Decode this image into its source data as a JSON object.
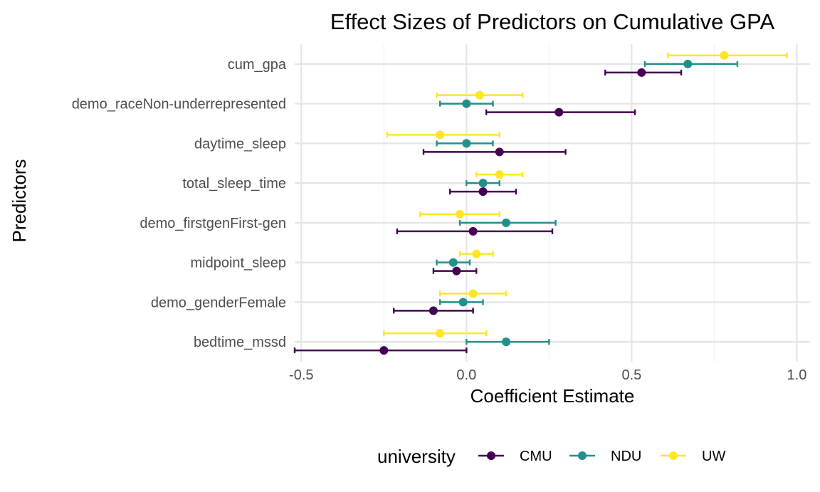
{
  "chart_data": {
    "type": "scatter",
    "title": "Effect Sizes of Predictors on Cumulative GPA",
    "xlabel": "Coefficient Estimate",
    "ylabel": "Predictors",
    "xlim": [
      -0.52,
      1.04
    ],
    "x_ticks": [
      -0.5,
      0.0,
      0.5,
      1.0
    ],
    "x_tick_labels": [
      "-0.5",
      "0.0",
      "0.5",
      "1.0"
    ],
    "grid": true,
    "legend_position": "bottom",
    "legend_title": "university",
    "categories": [
      "cum_gpa",
      "demo_raceNon-underrepresented",
      "daytime_sleep",
      "total_sleep_time",
      "demo_firstgenFirst-gen",
      "midpoint_sleep",
      "demo_genderFemale",
      "bedtime_mssd"
    ],
    "series": [
      {
        "name": "CMU",
        "color": "#440154",
        "estimates": [
          0.53,
          0.28,
          0.1,
          0.05,
          0.02,
          -0.03,
          -0.1,
          -0.25
        ],
        "ci_low": [
          0.42,
          0.06,
          -0.13,
          -0.05,
          -0.21,
          -0.1,
          -0.22,
          -0.52
        ],
        "ci_high": [
          0.65,
          0.51,
          0.3,
          0.15,
          0.26,
          0.03,
          0.02,
          0.0
        ]
      },
      {
        "name": "NDU",
        "color": "#21908C",
        "estimates": [
          0.67,
          0.0,
          0.0,
          0.05,
          0.12,
          -0.04,
          -0.01,
          0.12
        ],
        "ci_low": [
          0.54,
          -0.08,
          -0.09,
          0.0,
          -0.02,
          -0.09,
          -0.08,
          0.0
        ],
        "ci_high": [
          0.82,
          0.08,
          0.08,
          0.1,
          0.27,
          0.01,
          0.05,
          0.25
        ]
      },
      {
        "name": "UW",
        "color": "#FDE725",
        "estimates": [
          0.78,
          0.04,
          -0.08,
          0.1,
          -0.02,
          0.03,
          0.02,
          -0.08
        ],
        "ci_low": [
          0.61,
          -0.09,
          -0.24,
          0.03,
          -0.14,
          -0.02,
          -0.08,
          -0.25
        ],
        "ci_high": [
          0.97,
          0.17,
          0.1,
          0.17,
          0.1,
          0.08,
          0.12,
          0.06
        ]
      }
    ]
  }
}
